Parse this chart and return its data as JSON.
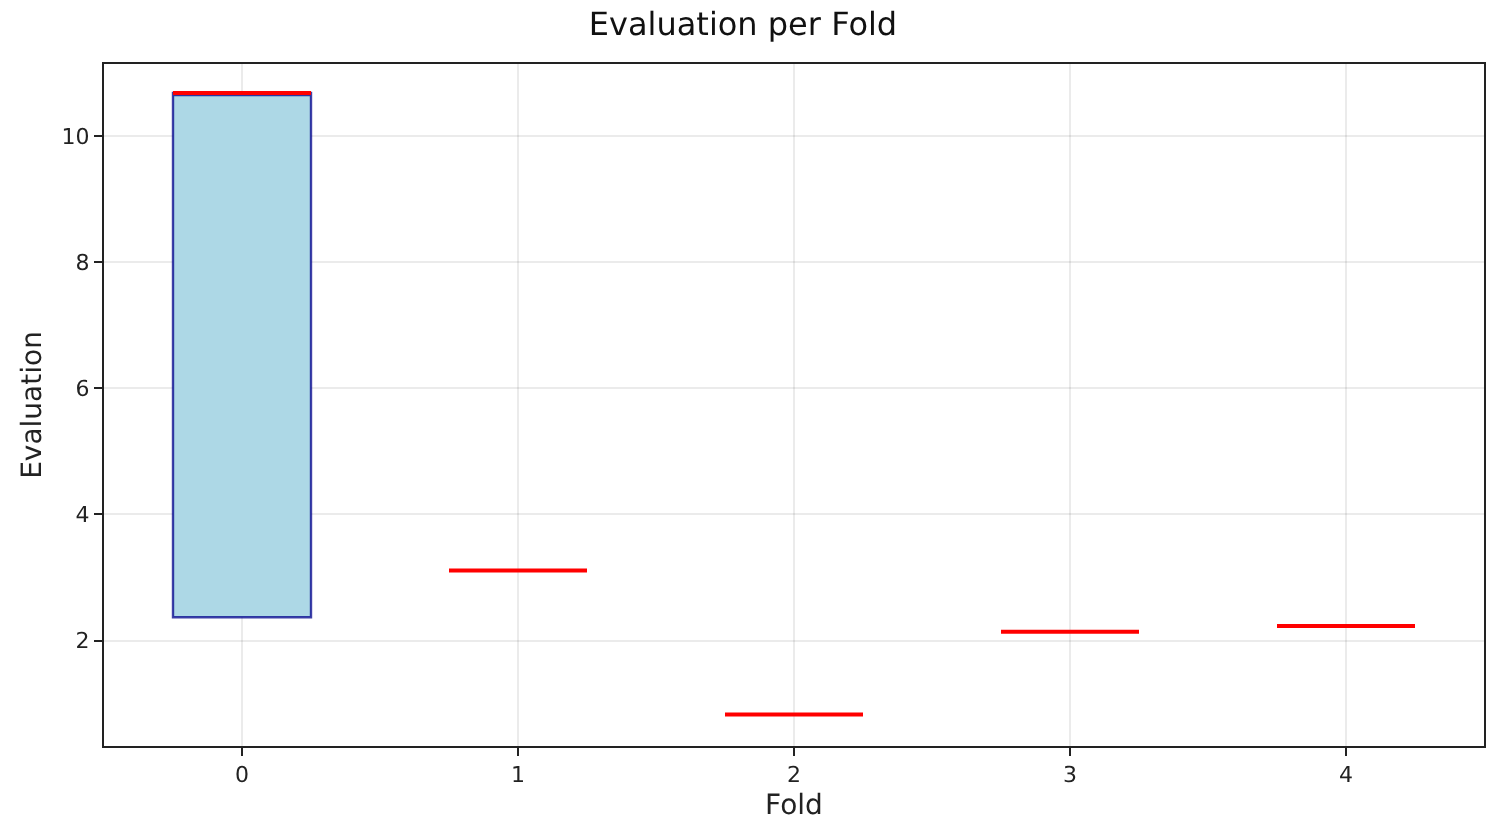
{
  "chart_data": {
    "type": "box",
    "title": "Evaluation per Fold",
    "xlabel": "Fold",
    "ylabel": "Evaluation",
    "categories": [
      "0",
      "1",
      "2",
      "3",
      "4"
    ],
    "series": [
      {
        "color": "#add8e6",
        "boxes": [
          {
            "low": 2.37,
            "q1": 2.37,
            "median": 10.68,
            "q3": 10.68,
            "high": 10.68
          },
          {
            "low": 3.11,
            "q1": 3.11,
            "median": 3.11,
            "q3": 3.11,
            "high": 3.11
          },
          {
            "low": 0.83,
            "q1": 0.83,
            "median": 0.83,
            "q3": 0.83,
            "high": 0.83
          },
          {
            "low": 2.14,
            "q1": 2.14,
            "median": 2.14,
            "q3": 2.14,
            "high": 2.14
          },
          {
            "low": 2.23,
            "q1": 2.23,
            "median": 2.23,
            "q3": 2.23,
            "high": 2.23
          }
        ]
      }
    ],
    "ylim": [
      0.33,
      11.14
    ],
    "yticks": [
      2,
      4,
      6,
      8,
      10
    ],
    "grid": true
  }
}
